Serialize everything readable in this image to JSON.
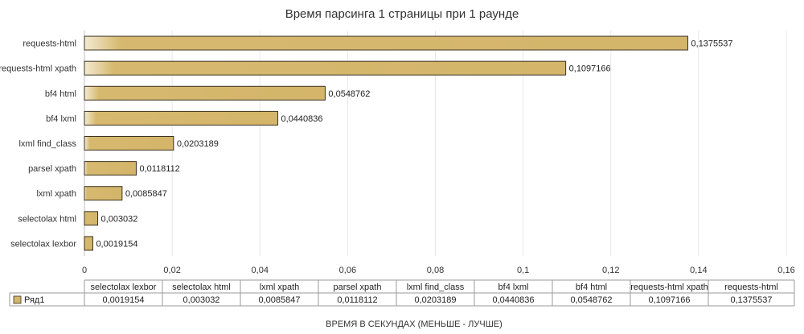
{
  "chart_data": {
    "type": "bar",
    "orientation": "horizontal",
    "title": "Время парсинга 1 страницы при 1 раунде",
    "xlabel": "ВРЕМЯ В СЕКУНДАХ (МЕНЬШЕ - ЛУЧШЕ)",
    "ylabel": "",
    "xlim": [
      0,
      0.16
    ],
    "xticks": [
      "0",
      "0,02",
      "0,04",
      "0,06",
      "0,08",
      "0,1",
      "0,12",
      "0,14",
      "0,16"
    ],
    "xtick_values": [
      0,
      0.02,
      0.04,
      0.06,
      0.08,
      0.1,
      0.12,
      0.14,
      0.16
    ],
    "grid": true,
    "categories": [
      "selectolax lexbor",
      "selectolax html",
      "lxml xpath",
      "parsel xpath",
      "lxml find_class",
      "bf4 lxml",
      "bf4 html",
      "requests-html xpath",
      "requests-html"
    ],
    "series": [
      {
        "name": "Ряд1",
        "values": [
          0.0019154,
          0.003032,
          0.0085847,
          0.0118112,
          0.0203189,
          0.0440836,
          0.0548762,
          0.1097166,
          0.1375537
        ],
        "labels": [
          "0,0019154",
          "0,003032",
          "0,0085847",
          "0,0118112",
          "0,0203189",
          "0,0440836",
          "0,0548762",
          "0,1097166",
          "0,1375537"
        ],
        "color": "#d4b56a"
      }
    ],
    "data_table": true
  }
}
